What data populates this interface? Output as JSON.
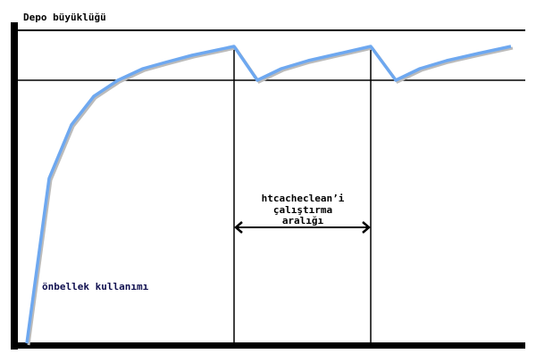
{
  "y_axis_label": "Depo büyüklüğü",
  "curve_label": "önbellek kullanımı",
  "interval_label": [
    "htcacheclean’i",
    "çalıştırma",
    "aralığı"
  ],
  "colors": {
    "curve": "#6ea8f0",
    "axis": "#000000",
    "curve_label": "#101050"
  }
}
